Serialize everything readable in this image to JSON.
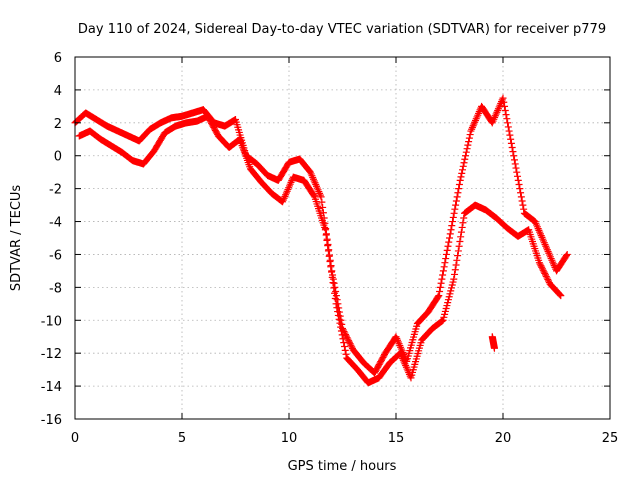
{
  "chart_data": {
    "type": "scatter",
    "title": "Day 110 of 2024, Sidereal Day-to-day VTEC variation (SDTVAR) for receiver p779",
    "xlabel": "GPS time / hours",
    "ylabel": "SDTVAR / TECUs",
    "xlim": [
      0,
      25
    ],
    "ylim": [
      -16,
      6
    ],
    "x_ticks": [
      0,
      5,
      10,
      15,
      20,
      25
    ],
    "y_ticks": [
      6,
      4,
      2,
      0,
      -2,
      -4,
      -6,
      -8,
      -10,
      -12,
      -14,
      -16
    ],
    "x_tick_labels": [
      "0",
      "5",
      "10",
      "15",
      "20",
      "25"
    ],
    "y_tick_labels": [
      "6",
      "4",
      "2",
      "0",
      "-2",
      "-4",
      "-6",
      "-8",
      "-10",
      "-12",
      "-14",
      "-16"
    ],
    "grid": true,
    "marker": "+",
    "color": "#ff0000",
    "series": [
      {
        "x": [
          0.0,
          0.5,
          1.0,
          1.5,
          2.0,
          2.5,
          3.0,
          3.5,
          4.0,
          4.5,
          5.0,
          5.5,
          6.0,
          6.5,
          7.0,
          7.5,
          8.0,
          8.5,
          9.0,
          9.5,
          10.0,
          10.5,
          11.0,
          11.5,
          12.0,
          12.5,
          13.0,
          13.5,
          14.0,
          14.5,
          15.0,
          15.5,
          16.0,
          16.5,
          17.0,
          17.5,
          18.0,
          18.5,
          19.0,
          19.5,
          20.0,
          20.5,
          21.0,
          21.5,
          22.0,
          22.5,
          23.0
        ],
        "y": [
          2.0,
          2.6,
          2.2,
          1.8,
          1.5,
          1.2,
          0.9,
          1.6,
          2.0,
          2.3,
          2.4,
          2.6,
          2.8,
          2.0,
          1.8,
          2.2,
          0.0,
          -0.5,
          -1.2,
          -1.5,
          -0.4,
          -0.2,
          -1.0,
          -2.5,
          -7.0,
          -10.5,
          -11.8,
          -12.6,
          -13.2,
          -12.0,
          -11.0,
          -12.5,
          -10.2,
          -9.5,
          -8.5,
          -5.0,
          -1.5,
          1.5,
          3.0,
          2.0,
          3.5,
          0.0,
          -3.5,
          -4.0,
          -5.5,
          -7.0,
          -6.0
        ]
      },
      {
        "x": [
          0.2,
          0.7,
          1.2,
          1.7,
          2.2,
          2.7,
          3.2,
          3.7,
          4.2,
          4.7,
          5.2,
          5.7,
          6.2,
          6.7,
          7.2,
          7.7,
          8.2,
          8.7,
          9.2,
          9.7,
          10.2,
          10.7,
          11.2,
          11.7,
          12.2,
          12.7,
          13.2,
          13.7,
          14.2,
          14.7,
          15.2,
          15.7,
          16.2,
          16.7,
          17.2,
          17.7,
          18.2,
          18.7,
          19.2,
          19.7,
          20.2,
          20.7,
          21.2,
          21.7,
          22.2,
          22.7
        ],
        "y": [
          1.2,
          1.5,
          1.0,
          0.6,
          0.2,
          -0.3,
          -0.5,
          0.3,
          1.4,
          1.8,
          2.0,
          2.1,
          2.4,
          1.2,
          0.5,
          1.0,
          -0.8,
          -1.6,
          -2.3,
          -2.8,
          -1.3,
          -1.5,
          -2.5,
          -4.5,
          -9.0,
          -12.3,
          -13.0,
          -13.8,
          -13.5,
          -12.6,
          -12.0,
          -13.5,
          -11.2,
          -10.5,
          -10.0,
          -7.5,
          -3.5,
          -3.0,
          -3.3,
          -3.8,
          -4.4,
          -4.9,
          -4.5,
          -6.5,
          -7.8,
          -8.5
        ]
      },
      {
        "x": [
          19.5,
          19.6
        ],
        "y": [
          -11.0,
          -11.7
        ]
      }
    ]
  }
}
